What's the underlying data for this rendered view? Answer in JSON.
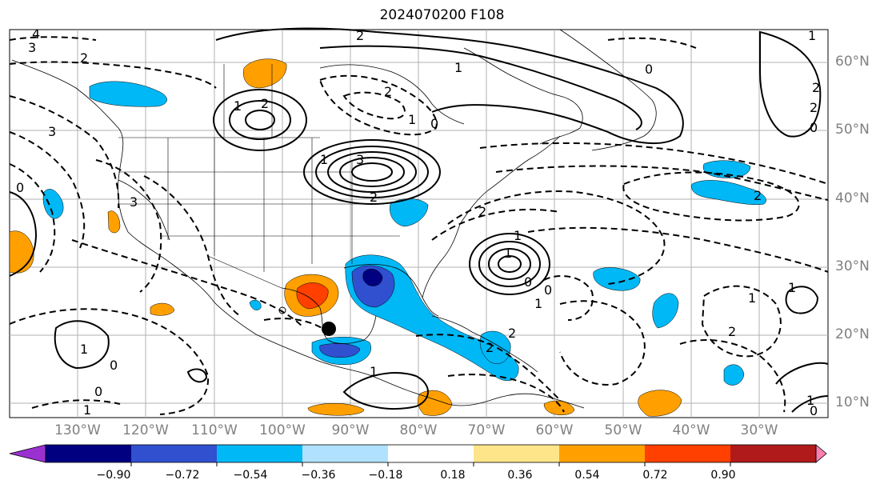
{
  "title": "2024070200 F108",
  "lat_labels": [
    "60°N",
    "50°N",
    "40°N",
    "30°N",
    "20°N",
    "10°N"
  ],
  "lon_labels": [
    "130°W",
    "120°W",
    "110°W",
    "100°W",
    "90°W",
    "80°W",
    "70°W",
    "60°W",
    "50°W",
    "40°W",
    "30°W"
  ],
  "colorbar": {
    "ticks": [
      "−0.90",
      "−0.72",
      "−0.54",
      "−0.36",
      "−0.18",
      "0.18",
      "0.36",
      "0.54",
      "0.72",
      "0.90"
    ],
    "colors": [
      "#9b30d0",
      "#000080",
      "#3050d0",
      "#00b8f5",
      "#b0e2ff",
      "#ffffff",
      "#ffe58a",
      "#ffa000",
      "#ff4000",
      "#b01a1a",
      "#ff80b0"
    ]
  },
  "contour_labels": [
    "4",
    "3",
    "2",
    "2",
    "1",
    "2",
    "2",
    "1",
    "0",
    "1",
    "2",
    "1",
    "0",
    "1",
    "2",
    "2",
    "3",
    "3",
    "2",
    "0",
    "1",
    "1",
    "0",
    "0",
    "2",
    "0",
    "1",
    "1",
    "0",
    "0",
    "1",
    "1",
    "1",
    "0",
    "3",
    "2",
    "1",
    "2",
    "2",
    "1"
  ],
  "colors": {
    "fill_blue": "#00b8f5",
    "fill_darkblue": "#3050d0",
    "fill_navy": "#000080",
    "fill_orange": "#ffa000",
    "fill_red": "#ff4000",
    "grid": "#b0b0b0"
  }
}
